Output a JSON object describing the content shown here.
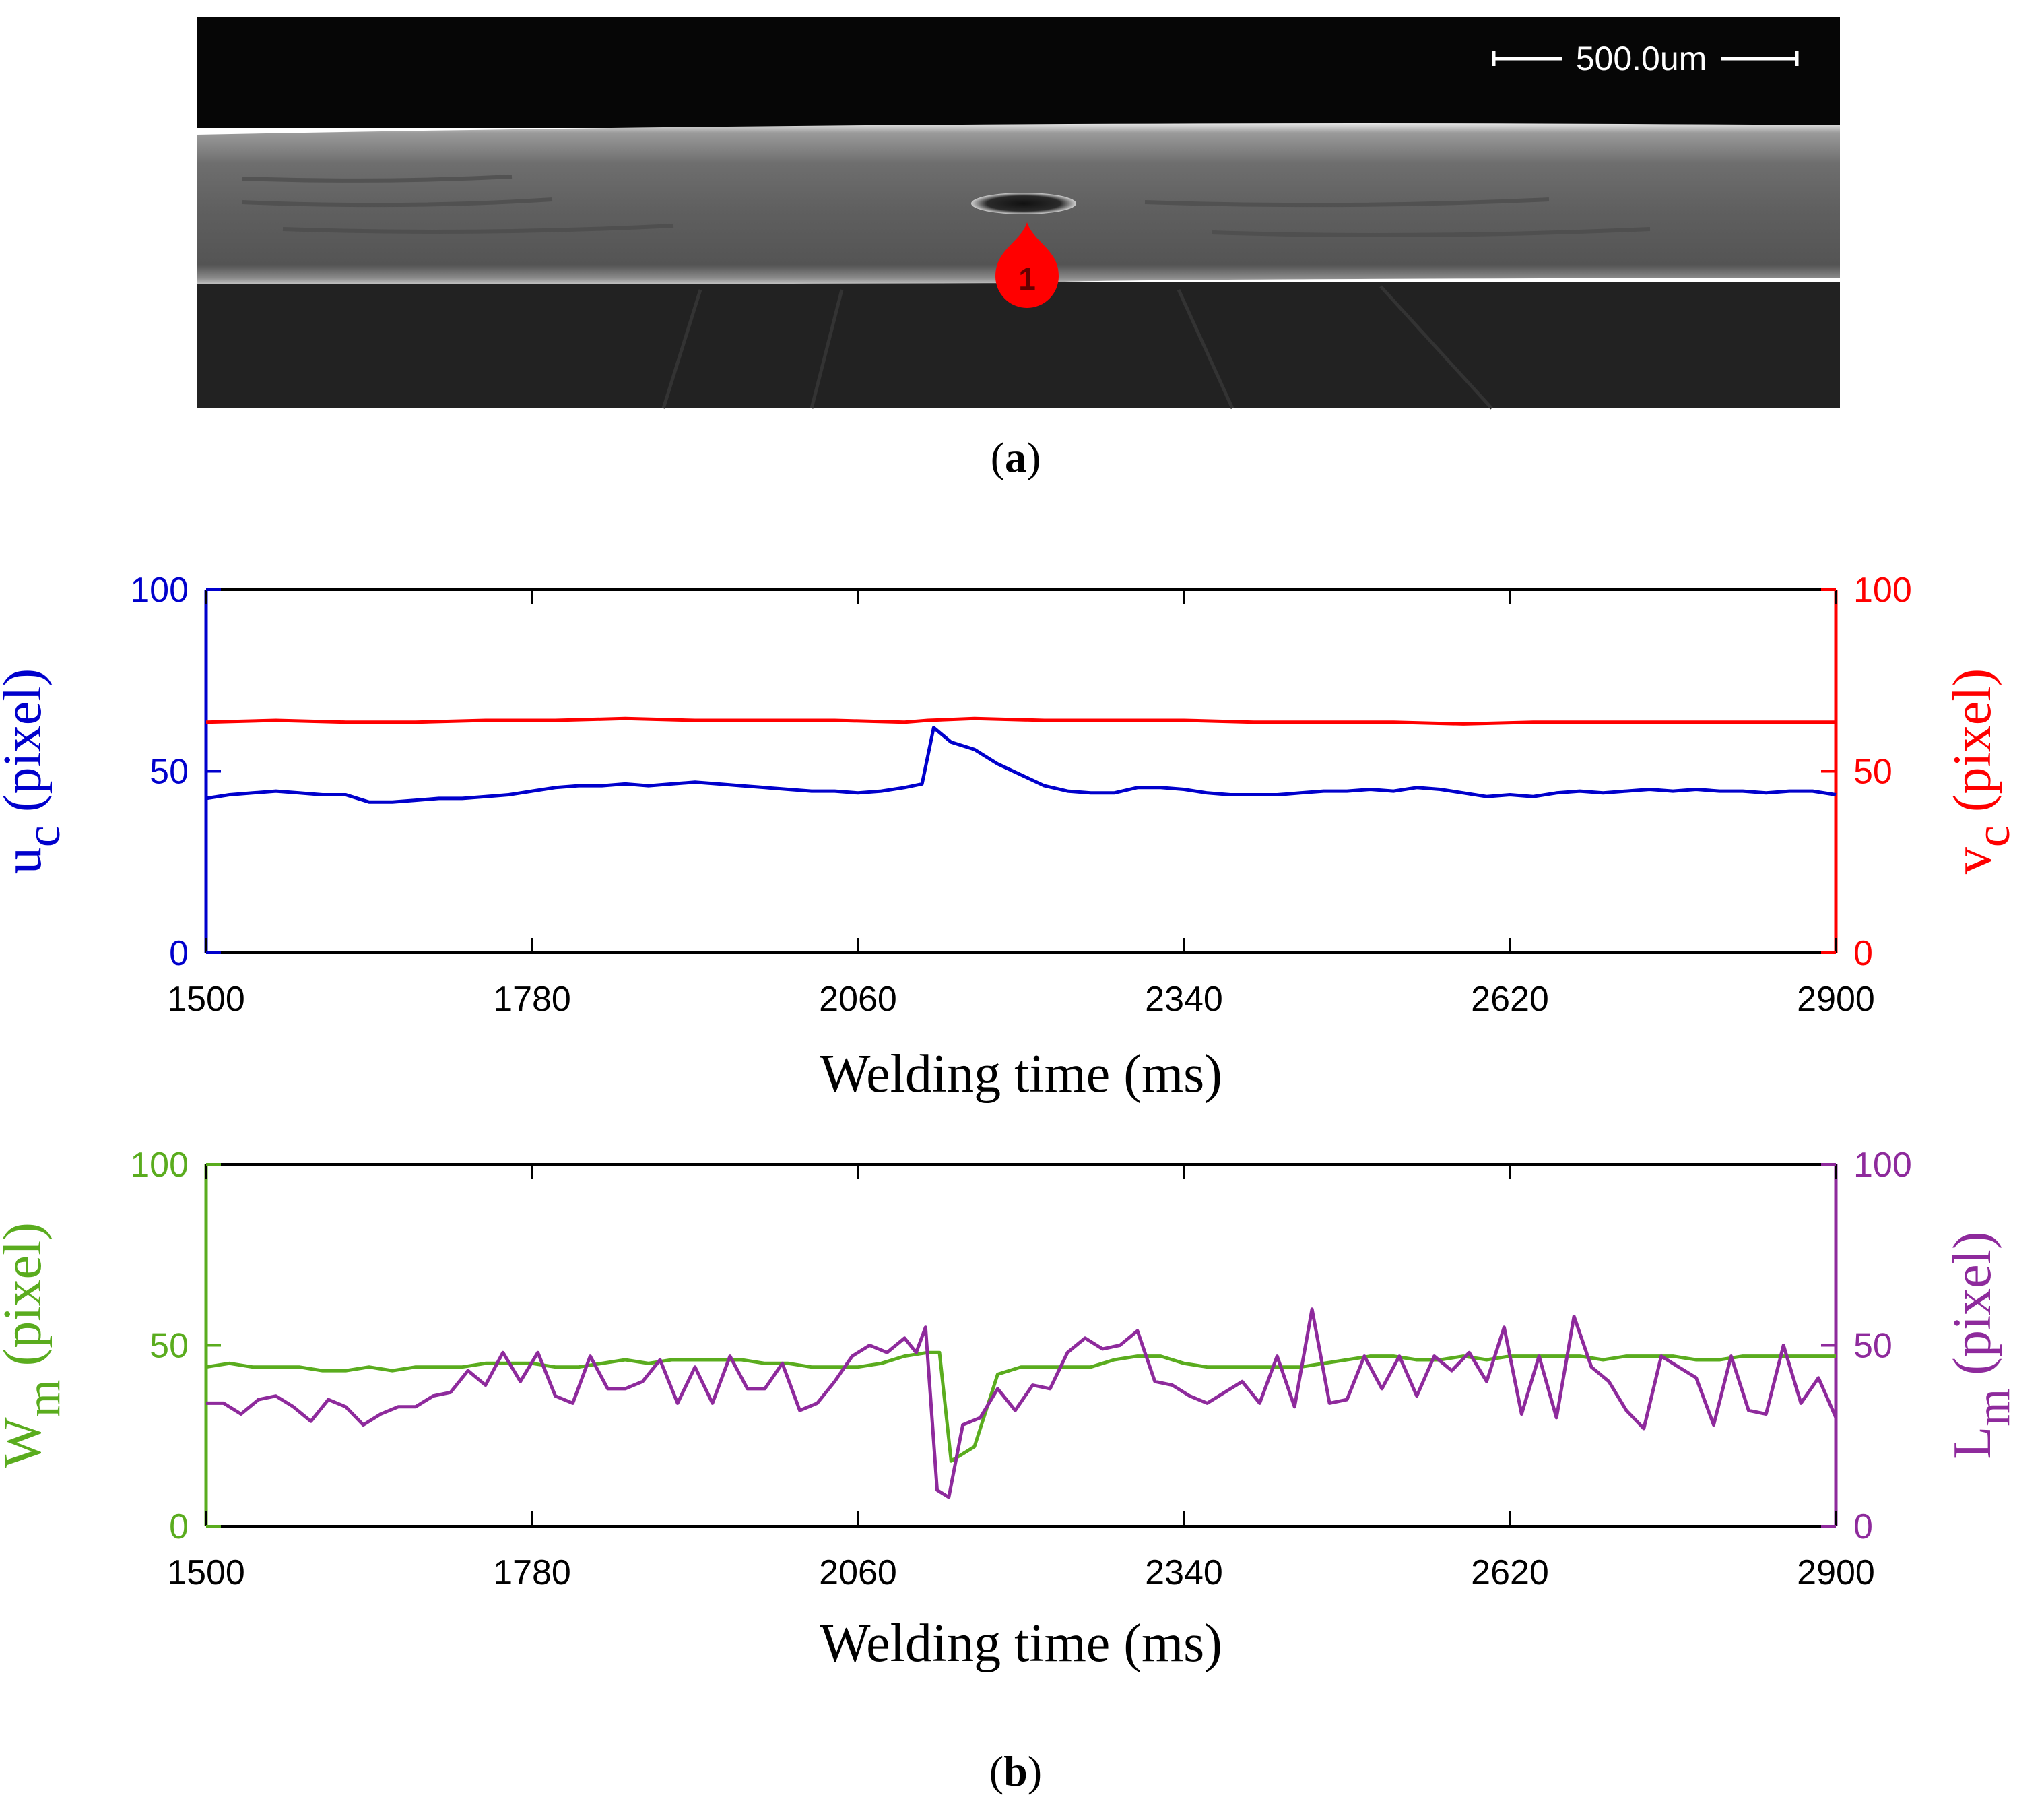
{
  "figure": {
    "panel_a_label": "a",
    "panel_b_label": "b",
    "micrograph": {
      "scale_bar_label": "500.0um",
      "marker_label": "1",
      "marker_color": "#ff0000"
    }
  },
  "chart_data": [
    {
      "type": "line",
      "xlabel": "Welding time (ms)",
      "xlim": [
        1500,
        2900
      ],
      "xticks": [
        1500,
        1780,
        2060,
        2340,
        2620,
        2900
      ],
      "left_axis": {
        "label_main": "u",
        "label_sub": "c",
        "label_tail": " (pixel)",
        "ylim": [
          0,
          100
        ],
        "yticks": [
          0,
          50,
          100
        ],
        "color": "#0000cc"
      },
      "right_axis": {
        "label_main": "v",
        "label_sub": "c",
        "label_tail": " (pixel)",
        "ylim": [
          0,
          100
        ],
        "yticks": [
          0,
          50,
          100
        ],
        "color": "#ff0000"
      },
      "grid": false,
      "series": [
        {
          "axis": "left",
          "color": "#0000cc",
          "x": [
            1500,
            1520,
            1540,
            1560,
            1580,
            1600,
            1620,
            1640,
            1660,
            1680,
            1700,
            1720,
            1740,
            1760,
            1780,
            1800,
            1820,
            1840,
            1860,
            1880,
            1900,
            1920,
            1940,
            1960,
            1980,
            2000,
            2020,
            2040,
            2060,
            2080,
            2100,
            2115,
            2125,
            2140,
            2160,
            2180,
            2200,
            2220,
            2240,
            2260,
            2280,
            2300,
            2320,
            2340,
            2360,
            2380,
            2400,
            2420,
            2440,
            2460,
            2480,
            2500,
            2520,
            2540,
            2560,
            2580,
            2600,
            2620,
            2640,
            2660,
            2680,
            2700,
            2720,
            2740,
            2760,
            2780,
            2800,
            2820,
            2840,
            2860,
            2880,
            2900
          ],
          "y": [
            42.5,
            43.5,
            44,
            44.5,
            44,
            43.5,
            43.5,
            41.5,
            41.5,
            42,
            42.5,
            42.5,
            43,
            43.5,
            44.5,
            45.5,
            46,
            46,
            46.5,
            46,
            46.5,
            47,
            46.5,
            46,
            45.5,
            45,
            44.5,
            44.5,
            44,
            44.5,
            45.5,
            46.5,
            62,
            58,
            56,
            52,
            49,
            46,
            44.5,
            44,
            44,
            45.5,
            45.5,
            45,
            44,
            43.5,
            43.5,
            43.5,
            44,
            44.5,
            44.5,
            45,
            44.5,
            45.5,
            45,
            44,
            43,
            43.5,
            43,
            44,
            44.5,
            44,
            44.5,
            45,
            44.5,
            45,
            44.5,
            44.5,
            44,
            44.5,
            44.5,
            43.5
          ]
        },
        {
          "axis": "right",
          "color": "#ff0000",
          "x": [
            1500,
            1560,
            1620,
            1680,
            1740,
            1800,
            1860,
            1920,
            1980,
            2040,
            2100,
            2120,
            2160,
            2220,
            2280,
            2340,
            2400,
            2460,
            2520,
            2580,
            2640,
            2700,
            2760,
            2820,
            2880,
            2900
          ],
          "y": [
            63.5,
            64,
            63.5,
            63.5,
            64,
            64,
            64.5,
            64,
            64,
            64,
            63.5,
            64,
            64.5,
            64,
            64,
            64,
            63.5,
            63.5,
            63.5,
            63,
            63.5,
            63.5,
            63.5,
            63.5,
            63.5,
            63.5
          ]
        }
      ]
    },
    {
      "type": "line",
      "xlabel": "Welding time (ms)",
      "xlim": [
        1500,
        2900
      ],
      "xticks": [
        1500,
        1780,
        2060,
        2340,
        2620,
        2900
      ],
      "left_axis": {
        "label_main": "W",
        "label_sub": "m",
        "label_tail": " (pixel)",
        "ylim": [
          0,
          100
        ],
        "yticks": [
          0,
          50,
          100
        ],
        "color": "#5aac1e"
      },
      "right_axis": {
        "label_main": "L",
        "label_sub": "m",
        "label_tail": " (pixel)",
        "ylim": [
          0,
          100
        ],
        "yticks": [
          0,
          50,
          100
        ],
        "color": "#8e2a9c"
      },
      "grid": false,
      "series": [
        {
          "axis": "left",
          "color": "#5aac1e",
          "x": [
            1500,
            1520,
            1540,
            1560,
            1580,
            1600,
            1620,
            1640,
            1660,
            1680,
            1700,
            1720,
            1740,
            1760,
            1780,
            1800,
            1820,
            1840,
            1860,
            1880,
            1900,
            1920,
            1940,
            1960,
            1980,
            2000,
            2020,
            2040,
            2060,
            2080,
            2100,
            2120,
            2130,
            2140,
            2160,
            2180,
            2200,
            2220,
            2240,
            2260,
            2280,
            2300,
            2320,
            2340,
            2360,
            2380,
            2400,
            2420,
            2440,
            2460,
            2480,
            2500,
            2520,
            2540,
            2560,
            2580,
            2600,
            2620,
            2640,
            2660,
            2680,
            2700,
            2720,
            2740,
            2760,
            2780,
            2800,
            2820,
            2840,
            2860,
            2880,
            2900
          ],
          "y": [
            44,
            45,
            44,
            44,
            44,
            43,
            43,
            44,
            43,
            44,
            44,
            44,
            45,
            45,
            45,
            44,
            44,
            45,
            46,
            45,
            46,
            46,
            46,
            46,
            45,
            45,
            44,
            44,
            44,
            45,
            47,
            48,
            48,
            18,
            22,
            42,
            44,
            44,
            44,
            44,
            46,
            47,
            47,
            45,
            44,
            44,
            44,
            44,
            44,
            45,
            46,
            47,
            47,
            46,
            46,
            47,
            46,
            47,
            47,
            47,
            47,
            46,
            47,
            47,
            47,
            46,
            46,
            47,
            47,
            47,
            47,
            47
          ]
        },
        {
          "axis": "right",
          "color": "#8e2a9c",
          "x": [
            1500,
            1515,
            1530,
            1545,
            1560,
            1575,
            1590,
            1605,
            1620,
            1635,
            1650,
            1665,
            1680,
            1695,
            1710,
            1725,
            1740,
            1755,
            1770,
            1785,
            1800,
            1815,
            1830,
            1845,
            1860,
            1875,
            1890,
            1905,
            1920,
            1935,
            1950,
            1965,
            1980,
            1995,
            2010,
            2025,
            2040,
            2055,
            2070,
            2085,
            2100,
            2110,
            2118,
            2128,
            2138,
            2150,
            2165,
            2180,
            2195,
            2210,
            2225,
            2240,
            2255,
            2270,
            2285,
            2300,
            2315,
            2330,
            2345,
            2360,
            2375,
            2390,
            2405,
            2420,
            2435,
            2450,
            2465,
            2480,
            2495,
            2510,
            2525,
            2540,
            2555,
            2570,
            2585,
            2600,
            2615,
            2630,
            2645,
            2660,
            2675,
            2690,
            2705,
            2720,
            2735,
            2750,
            2765,
            2780,
            2795,
            2810,
            2825,
            2840,
            2855,
            2870,
            2885,
            2900
          ],
          "y": [
            34,
            34,
            31,
            35,
            36,
            33,
            29,
            35,
            33,
            28,
            31,
            33,
            33,
            36,
            37,
            43,
            39,
            48,
            40,
            48,
            36,
            34,
            47,
            38,
            38,
            40,
            46,
            34,
            44,
            34,
            47,
            38,
            38,
            45,
            32,
            34,
            40,
            47,
            50,
            48,
            52,
            48,
            55,
            10,
            8,
            28,
            30,
            38,
            32,
            39,
            38,
            48,
            52,
            49,
            50,
            54,
            40,
            39,
            36,
            34,
            37,
            40,
            34,
            47,
            33,
            60,
            34,
            35,
            47,
            38,
            47,
            36,
            47,
            43,
            48,
            40,
            55,
            31,
            47,
            30,
            58,
            44,
            40,
            32,
            27,
            47,
            44,
            41,
            28,
            47,
            32,
            31,
            50,
            34,
            41,
            30
          ]
        }
      ]
    }
  ]
}
